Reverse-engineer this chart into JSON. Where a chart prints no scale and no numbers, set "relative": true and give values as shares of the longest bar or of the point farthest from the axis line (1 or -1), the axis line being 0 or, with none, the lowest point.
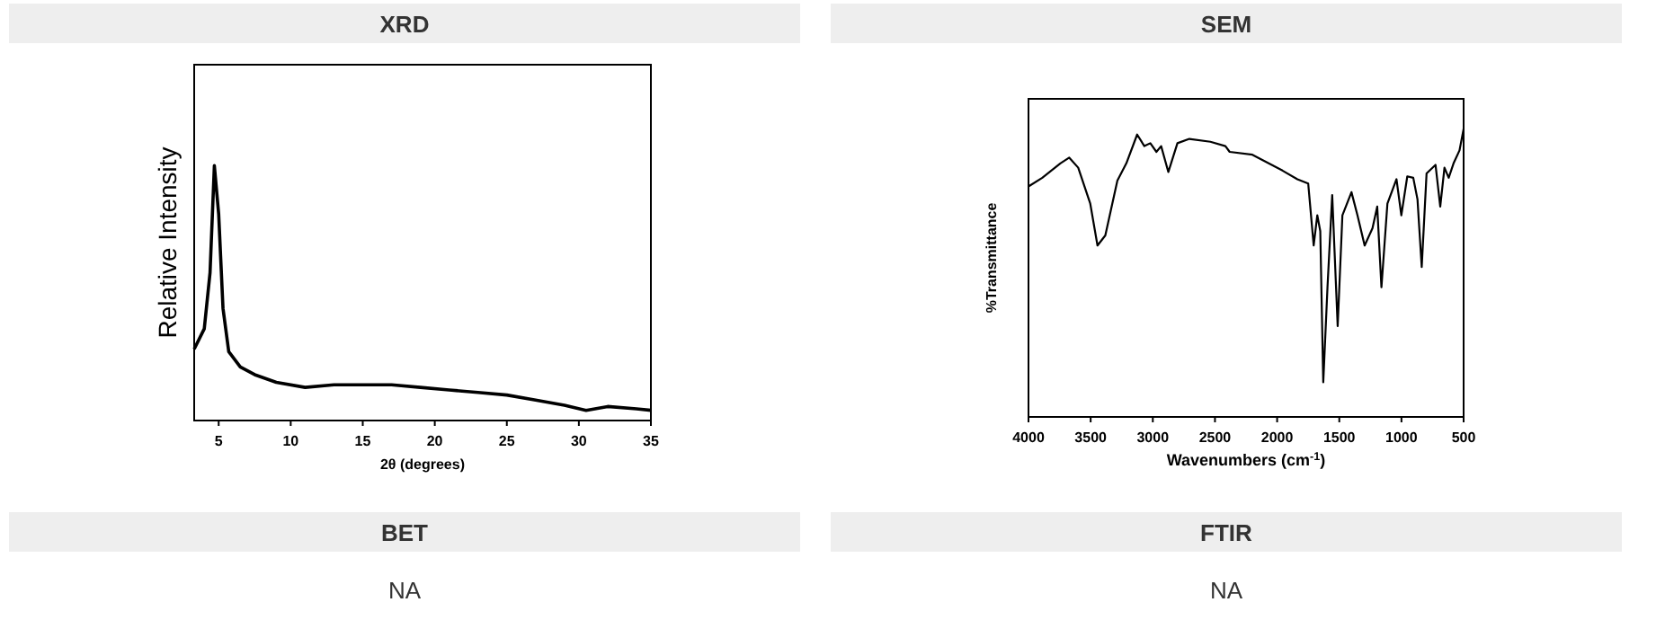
{
  "chart_data": [
    {
      "type": "line",
      "title": "XRD",
      "xlabel": "2θ (degrees)",
      "ylabel": "Relative Intensity",
      "relative": true,
      "tick_labels": "x",
      "xlim": [
        3.3,
        35
      ],
      "xticks": [
        5,
        10,
        15,
        20,
        25,
        30,
        35
      ],
      "series": [
        {
          "color": "#000000",
          "x": [
            3.3,
            4.0,
            4.4,
            4.7,
            5.0,
            5.3,
            5.7,
            6.5,
            7.5,
            9,
            11,
            13,
            15,
            17,
            19,
            21,
            23,
            25,
            27,
            29,
            30.5,
            32,
            34,
            35
          ],
          "values": [
            0.28,
            0.36,
            0.58,
            1.0,
            0.81,
            0.44,
            0.27,
            0.21,
            0.18,
            0.15,
            0.13,
            0.14,
            0.14,
            0.14,
            0.13,
            0.12,
            0.11,
            0.1,
            0.08,
            0.06,
            0.04,
            0.055,
            0.046,
            0.04
          ]
        }
      ]
    },
    {
      "type": "line",
      "title": "SEM",
      "xlabel": "Wavenumbers (cm$^{-1}$)",
      "ylabel": "%Transmittance",
      "relative": true,
      "tick_labels": "x",
      "xlim": [
        4000,
        500
      ],
      "xticks": [
        4000,
        3500,
        3000,
        2500,
        2000,
        1500,
        1000,
        500
      ],
      "series": [
        {
          "color": "#000000",
          "x": [
            4000,
            3889,
            3744,
            3672,
            3600,
            3503,
            3445,
            3382,
            3285,
            3213,
            3126,
            3068,
            3020,
            2971,
            2933,
            2875,
            2802,
            2706,
            2537,
            2416,
            2382,
            2199,
            1957,
            1837,
            1750,
            1706,
            1677,
            1653,
            1629,
            1595,
            1557,
            1513,
            1475,
            1402,
            1354,
            1296,
            1233,
            1195,
            1161,
            1113,
            1040,
            1001,
            953,
            905,
            871,
            837,
            798,
            726,
            688,
            654,
            620,
            581,
            533,
            500
          ],
          "values": [
            0.8,
            0.83,
            0.88,
            0.9,
            0.865,
            0.74,
            0.595,
            0.63,
            0.82,
            0.88,
            0.98,
            0.94,
            0.95,
            0.92,
            0.94,
            0.85,
            0.95,
            0.965,
            0.955,
            0.94,
            0.92,
            0.91,
            0.855,
            0.825,
            0.81,
            0.595,
            0.7,
            0.645,
            0.12,
            0.45,
            0.77,
            0.315,
            0.7,
            0.78,
            0.7,
            0.595,
            0.655,
            0.73,
            0.45,
            0.74,
            0.825,
            0.7,
            0.835,
            0.83,
            0.755,
            0.52,
            0.845,
            0.875,
            0.73,
            0.865,
            0.83,
            0.88,
            0.925,
            1.0
          ]
        }
      ]
    },
    {
      "type": "other",
      "title": "BET",
      "annotations": [
        "NA"
      ]
    },
    {
      "type": "other",
      "title": "FTIR",
      "annotations": [
        "NA"
      ]
    }
  ]
}
